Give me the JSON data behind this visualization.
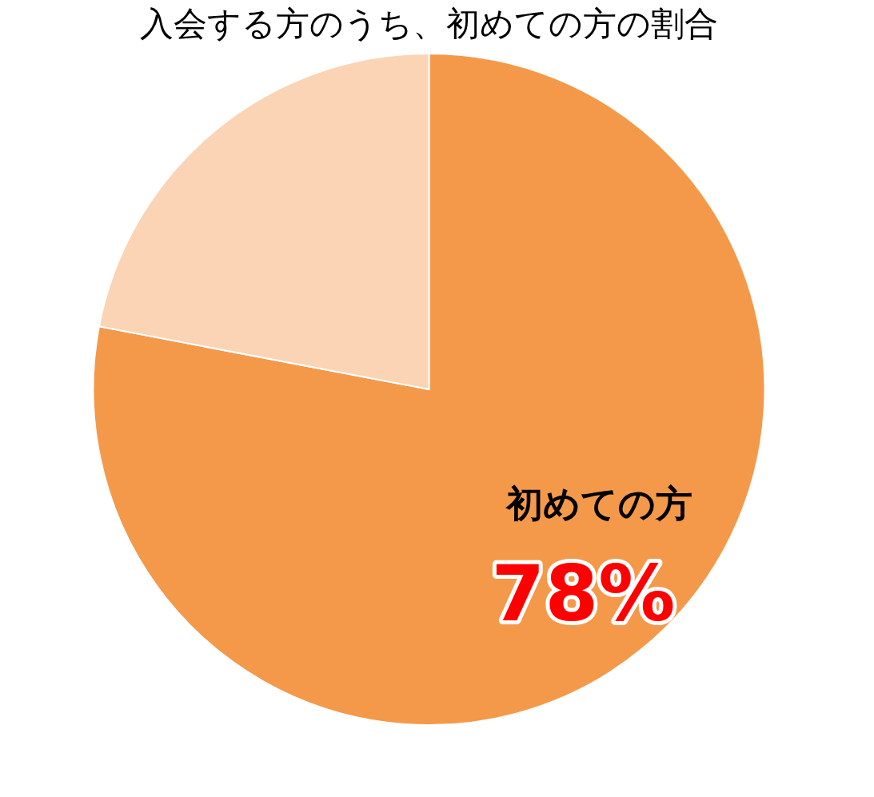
{
  "chart_data": {
    "type": "pie",
    "title": "入会する方のうち、初めての方の割合",
    "categories": [
      "初めての方",
      null
    ],
    "values": [
      78,
      22
    ],
    "colors": [
      "#f4994a",
      "#fad4b4"
    ],
    "value_labels": [
      "78%",
      null
    ]
  }
}
